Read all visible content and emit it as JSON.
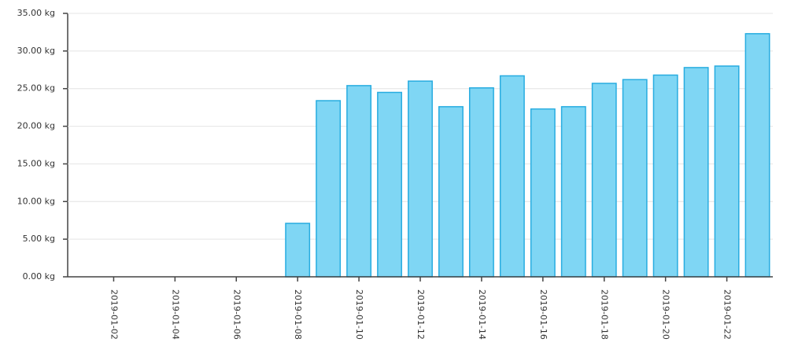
{
  "chart_data": {
    "type": "bar",
    "categories": [
      null,
      "2019-01-02",
      null,
      "2019-01-04",
      null,
      "2019-01-06",
      null,
      "2019-01-08",
      null,
      "2019-01-10",
      null,
      "2019-01-12",
      null,
      "2019-01-14",
      null,
      "2019-01-16",
      null,
      "2019-01-18",
      null,
      "2019-01-20",
      null,
      "2019-01-22",
      null
    ],
    "values": [
      0,
      0,
      0,
      0,
      0,
      0,
      0,
      7.1,
      23.4,
      25.4,
      24.5,
      26.0,
      22.6,
      25.1,
      26.7,
      22.3,
      22.6,
      25.7,
      26.2,
      26.8,
      27.8,
      28.0,
      32.3
    ],
    "color": "#7fd6f4",
    "edge_color": "#27ace0",
    "ylim": [
      0,
      35
    ],
    "yticks": [
      {
        "value": 0,
        "label": "0.00 kg"
      },
      {
        "value": 5,
        "label": "5.00 kg"
      },
      {
        "value": 10,
        "label": "10.00 kg"
      },
      {
        "value": 15,
        "label": "15.00 kg"
      },
      {
        "value": 20,
        "label": "20.00 kg"
      },
      {
        "value": 25,
        "label": "25.00 kg"
      },
      {
        "value": 30,
        "label": "30.00 kg"
      },
      {
        "value": 35,
        "label": "35.00 kg"
      }
    ],
    "grid": true
  }
}
